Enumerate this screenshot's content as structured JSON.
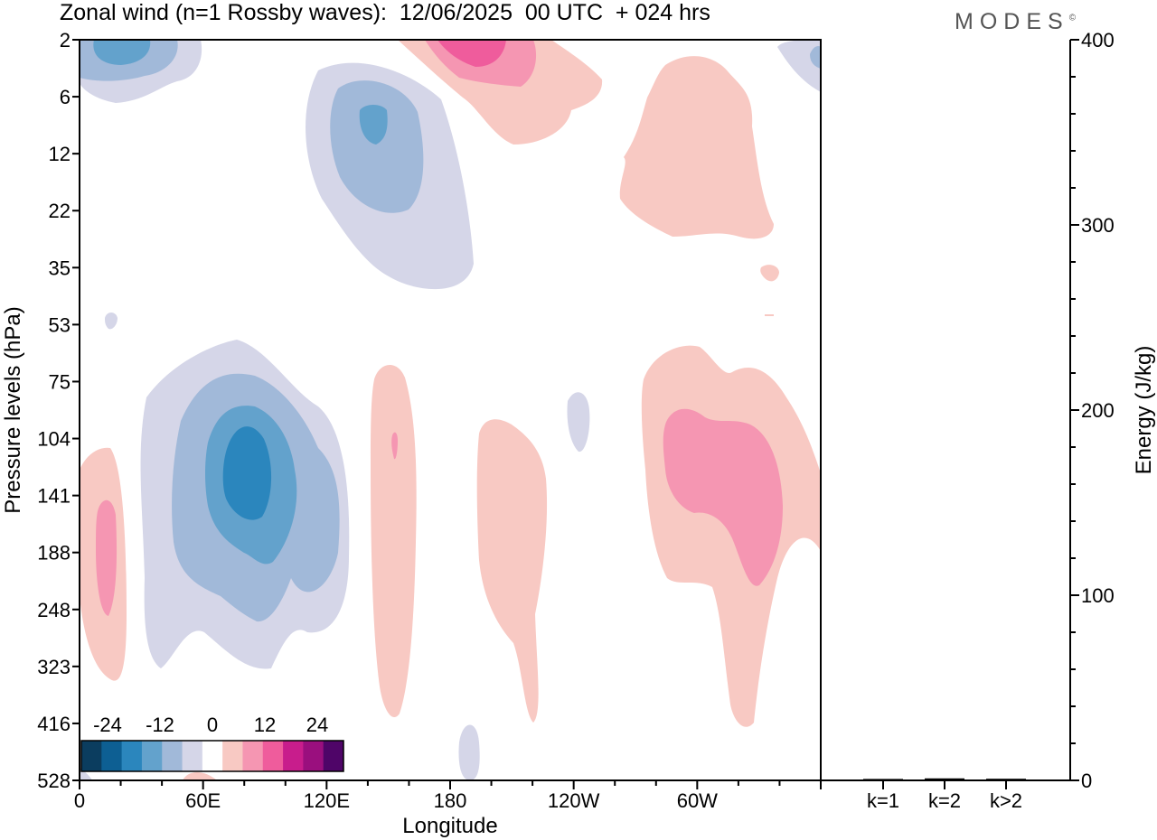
{
  "header": {
    "title": "Zonal wind (n=1 Rossby waves):  12/06/2025  00 UTC  + 024 hrs",
    "brand": "MODES",
    "brand_mark": "©"
  },
  "colors": {
    "negative": [
      "#0b3d5f",
      "#0d5f93",
      "#2b86bd",
      "#63a2cc",
      "#a1b9d9",
      "#d5d6e8"
    ],
    "zero": "#ffffff",
    "positive": [
      "#f8c9c3",
      "#f596b2",
      "#ef5c9c",
      "#c81d8c",
      "#9a0f7e",
      "#4f0568"
    ]
  },
  "chart_data": [
    {
      "type": "heatmap",
      "title": "Zonal wind (n=1 Rossby waves):  12/06/2025  00 UTC  + 024 hrs",
      "xlabel": "Longitude",
      "ylabel": "Pressure levels (hPa)",
      "x_ticks": [
        "0",
        "60E",
        "120E",
        "180",
        "120W",
        "60W"
      ],
      "x_tick_degrees": [
        0,
        60,
        120,
        180,
        240,
        300
      ],
      "xlim_degrees": [
        0,
        360
      ],
      "y_levels": [
        "2",
        "6",
        "12",
        "22",
        "35",
        "53",
        "75",
        "104",
        "141",
        "188",
        "248",
        "323",
        "416",
        "528"
      ],
      "y_order": "top-to-bottom",
      "colorbar_labels": [
        "-24",
        "-12",
        "0",
        "12",
        "24"
      ],
      "colorbar_range": [
        -30,
        30
      ],
      "colorbar_step": 5,
      "features": [
        {
          "sign": "negative",
          "peak": -20,
          "lon": 22,
          "level": 2
        },
        {
          "sign": "negative",
          "peak": -20,
          "lon": 140,
          "level": 9
        },
        {
          "sign": "negative",
          "peak": -25,
          "lon": 80,
          "level": 141
        },
        {
          "sign": "negative",
          "peak": -5,
          "lon": 240,
          "level": 104
        },
        {
          "sign": "negative",
          "peak": -5,
          "lon": 15,
          "level": 53
        },
        {
          "sign": "negative",
          "peak": -5,
          "lon": 190,
          "level": 480
        },
        {
          "sign": "positive",
          "peak": 20,
          "lon": 190,
          "level": 2
        },
        {
          "sign": "positive",
          "peak": 5,
          "lon": 300,
          "level": 12
        },
        {
          "sign": "positive",
          "peak": 10,
          "lon": 12,
          "level": 188
        },
        {
          "sign": "positive",
          "peak": 10,
          "lon": 153,
          "level": 104
        },
        {
          "sign": "positive",
          "peak": 5,
          "lon": 208,
          "level": 188
        },
        {
          "sign": "positive",
          "peak": 10,
          "lon": 305,
          "level": 141
        }
      ]
    },
    {
      "type": "bar",
      "categories": [
        "k=1",
        "k=2",
        "k>2"
      ],
      "values": [
        0.3,
        0.6,
        0.4
      ],
      "ylabel": "Energy (J/kg)",
      "ylim": [
        0,
        400
      ],
      "y_ticks": [
        0,
        100,
        200,
        300,
        400
      ],
      "y_minor_step": 20
    }
  ]
}
